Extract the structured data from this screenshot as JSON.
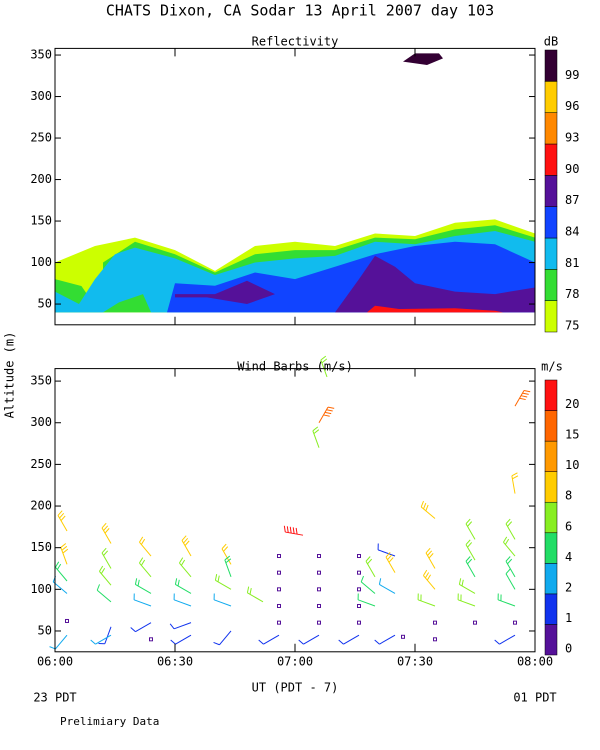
{
  "title": "CHATS Dixon, CA  Sodar  13 April 2007  day 103",
  "y_label": "Altitude (m)",
  "x_label": "UT  (PDT - 7)",
  "left_note": "23 PDT",
  "right_note": "01 PDT",
  "footnote": "Prelimiary Data",
  "chart_data": [
    {
      "type": "contour",
      "title": "Reflectivity",
      "xlim": [
        0,
        120
      ],
      "ylim": [
        25,
        358
      ],
      "xticks": [
        {
          "value": 0,
          "label": "06:00"
        },
        {
          "value": 30,
          "label": "06:30"
        },
        {
          "value": 60,
          "label": "07:00"
        },
        {
          "value": 90,
          "label": "07:30"
        },
        {
          "value": 120,
          "label": "08:00"
        }
      ],
      "yticks": [
        50,
        100,
        150,
        200,
        250,
        300,
        350
      ],
      "colorbar": {
        "unit": "dB",
        "levels": [
          75,
          78,
          81,
          84,
          87,
          90,
          93,
          96,
          99
        ],
        "colors": [
          "#ccff00",
          "#33dd33",
          "#11bbee",
          "#1144ff",
          "#551199",
          "#ff1111",
          "#ff8800",
          "#ffcc00",
          "#330033"
        ]
      },
      "regions": [
        {
          "level": 75,
          "points": [
            [
              0,
              40
            ],
            [
              0,
              100
            ],
            [
              10,
              120
            ],
            [
              20,
              130
            ],
            [
              30,
              115
            ],
            [
              40,
              90
            ],
            [
              50,
              120
            ],
            [
              60,
              125
            ],
            [
              70,
              120
            ],
            [
              80,
              135
            ],
            [
              90,
              132
            ],
            [
              100,
              148
            ],
            [
              110,
              152
            ],
            [
              120,
              135
            ],
            [
              120,
              40
            ]
          ]
        },
        {
          "level": 78,
          "points": [
            [
              0,
              40
            ],
            [
              0,
              80
            ],
            [
              8,
              70
            ],
            [
              12,
              100
            ],
            [
              20,
              125
            ],
            [
              30,
              110
            ],
            [
              40,
              88
            ],
            [
              50,
              110
            ],
            [
              60,
              115
            ],
            [
              70,
              115
            ],
            [
              80,
              130
            ],
            [
              90,
              128
            ],
            [
              100,
              140
            ],
            [
              110,
              145
            ],
            [
              120,
              130
            ],
            [
              120,
              40
            ]
          ]
        },
        {
          "level": 75,
          "points": [
            [
              4,
              90
            ],
            [
              12,
              100
            ],
            [
              12,
              72
            ],
            [
              8,
              62
            ]
          ]
        },
        {
          "level": 81,
          "points": [
            [
              0,
              40
            ],
            [
              0,
              65
            ],
            [
              6,
              50
            ],
            [
              10,
              80
            ],
            [
              15,
              110
            ],
            [
              20,
              118
            ],
            [
              30,
              105
            ],
            [
              40,
              85
            ],
            [
              50,
              100
            ],
            [
              60,
              105
            ],
            [
              70,
              108
            ],
            [
              80,
              125
            ],
            [
              90,
              122
            ],
            [
              100,
              132
            ],
            [
              110,
              138
            ],
            [
              120,
              125
            ],
            [
              120,
              40
            ],
            [
              24,
              40
            ],
            [
              22,
              62
            ],
            [
              16,
              52
            ],
            [
              12,
              40
            ]
          ]
        },
        {
          "level": 84,
          "points": [
            [
              28,
              40
            ],
            [
              30,
              75
            ],
            [
              40,
              72
            ],
            [
              50,
              88
            ],
            [
              60,
              80
            ],
            [
              70,
              95
            ],
            [
              80,
              110
            ],
            [
              90,
              120
            ],
            [
              100,
              125
            ],
            [
              110,
              122
            ],
            [
              120,
              100
            ],
            [
              120,
              40
            ]
          ]
        },
        {
          "level": 87,
          "points": [
            [
              70,
              40
            ],
            [
              76,
              80
            ],
            [
              80,
              108
            ],
            [
              85,
              95
            ],
            [
              90,
              75
            ],
            [
              100,
              65
            ],
            [
              110,
              62
            ],
            [
              120,
              70
            ],
            [
              120,
              40
            ]
          ]
        },
        {
          "level": 87,
          "points": [
            [
              30,
              62
            ],
            [
              40,
              62
            ],
            [
              48,
              78
            ],
            [
              55,
              62
            ],
            [
              48,
              50
            ],
            [
              38,
              58
            ],
            [
              30,
              58
            ]
          ]
        },
        {
          "level": 90,
          "points": [
            [
              78,
              40
            ],
            [
              80,
              48
            ],
            [
              86,
              44
            ],
            [
              100,
              45
            ],
            [
              110,
              42
            ],
            [
              112,
              40
            ]
          ]
        },
        {
          "level": 99,
          "points": [
            [
              87,
              342
            ],
            [
              90,
              352
            ],
            [
              96,
              352
            ],
            [
              97,
              346
            ],
            [
              93,
              338
            ]
          ]
        }
      ]
    },
    {
      "type": "barbs",
      "title": "Wind Barbs (m/s)",
      "xlim": [
        0,
        120
      ],
      "ylim": [
        25,
        365
      ],
      "xticks": [
        {
          "value": 0,
          "label": "06:00"
        },
        {
          "value": 30,
          "label": "06:30"
        },
        {
          "value": 60,
          "label": "07:00"
        },
        {
          "value": 90,
          "label": "07:30"
        },
        {
          "value": 120,
          "label": "08:00"
        }
      ],
      "yticks": [
        50,
        100,
        150,
        200,
        250,
        300,
        350
      ],
      "colorbar": {
        "unit": "m/s",
        "levels": [
          0,
          1,
          2,
          4,
          6,
          8,
          10,
          15,
          20
        ],
        "colors": [
          "#551199",
          "#1133ee",
          "#11aaee",
          "#22dd66",
          "#88ee22",
          "#ffcc00",
          "#ff9900",
          "#ff6600",
          "#ff1111"
        ]
      },
      "barbs": [
        [
          3,
          170,
          9,
          330
        ],
        [
          3,
          130,
          9,
          340
        ],
        [
          3,
          110,
          5,
          320
        ],
        [
          3,
          95,
          3,
          310
        ],
        [
          3,
          62,
          0,
          0
        ],
        [
          3,
          45,
          2,
          220
        ],
        [
          14,
          155,
          9,
          330
        ],
        [
          14,
          125,
          7,
          330
        ],
        [
          14,
          105,
          6,
          320
        ],
        [
          14,
          85,
          4,
          310
        ],
        [
          14,
          55,
          1.5,
          200
        ],
        [
          14,
          45,
          2,
          240
        ],
        [
          24,
          140,
          8,
          320
        ],
        [
          24,
          115,
          7,
          320
        ],
        [
          24,
          95,
          5,
          300
        ],
        [
          24,
          80,
          3,
          290
        ],
        [
          24,
          60,
          1.5,
          240
        ],
        [
          24,
          40,
          0,
          0
        ],
        [
          34,
          140,
          9,
          330
        ],
        [
          34,
          115,
          7,
          320
        ],
        [
          34,
          95,
          5,
          300
        ],
        [
          34,
          80,
          3,
          290
        ],
        [
          34,
          60,
          1.5,
          250
        ],
        [
          34,
          45,
          1.5,
          240
        ],
        [
          44,
          130,
          8,
          330
        ],
        [
          44,
          115,
          5,
          340
        ],
        [
          44,
          100,
          6,
          300
        ],
        [
          44,
          80,
          3,
          290
        ],
        [
          44,
          50,
          1.5,
          220
        ],
        [
          52,
          85,
          7,
          300
        ],
        [
          56,
          140,
          0,
          0
        ],
        [
          56,
          120,
          0,
          0
        ],
        [
          56,
          100,
          0,
          0
        ],
        [
          56,
          80,
          0,
          0
        ],
        [
          56,
          60,
          0,
          0
        ],
        [
          56,
          45,
          1.5,
          240
        ],
        [
          62,
          165,
          20,
          280
        ],
        [
          66,
          300,
          15,
          30
        ],
        [
          66,
          270,
          7,
          340
        ],
        [
          68,
          355,
          7,
          340
        ],
        [
          66,
          140,
          0,
          0
        ],
        [
          66,
          120,
          0,
          0
        ],
        [
          66,
          100,
          0,
          0
        ],
        [
          66,
          80,
          0,
          0
        ],
        [
          66,
          60,
          0,
          0
        ],
        [
          66,
          45,
          1.5,
          240
        ],
        [
          76,
          140,
          0,
          0
        ],
        [
          76,
          120,
          0,
          0
        ],
        [
          76,
          100,
          0,
          0
        ],
        [
          76,
          80,
          0,
          0
        ],
        [
          76,
          60,
          0,
          0
        ],
        [
          76,
          45,
          1.5,
          240
        ],
        [
          80,
          115,
          7,
          330
        ],
        [
          80,
          95,
          4,
          310
        ],
        [
          80,
          80,
          4,
          290
        ],
        [
          85,
          140,
          1.5,
          290
        ],
        [
          85,
          120,
          9,
          330
        ],
        [
          85,
          95,
          3,
          300
        ],
        [
          85,
          45,
          1.5,
          240
        ],
        [
          87,
          43,
          0,
          0
        ],
        [
          95,
          185,
          9,
          310
        ],
        [
          95,
          125,
          9,
          330
        ],
        [
          95,
          100,
          9,
          320
        ],
        [
          95,
          80,
          6,
          290
        ],
        [
          95,
          60,
          0,
          0
        ],
        [
          95,
          40,
          0,
          0
        ],
        [
          105,
          160,
          6,
          330
        ],
        [
          105,
          135,
          7,
          330
        ],
        [
          105,
          115,
          5,
          330
        ],
        [
          105,
          95,
          6,
          300
        ],
        [
          105,
          80,
          6,
          290
        ],
        [
          105,
          60,
          0,
          0
        ],
        [
          115,
          320,
          15,
          30
        ],
        [
          115,
          215,
          8,
          350
        ],
        [
          115,
          160,
          6,
          330
        ],
        [
          115,
          140,
          6,
          320
        ],
        [
          115,
          115,
          5,
          330
        ],
        [
          115,
          100,
          4,
          330
        ],
        [
          115,
          80,
          5,
          290
        ],
        [
          115,
          60,
          0,
          0
        ],
        [
          115,
          45,
          1.5,
          240
        ]
      ]
    }
  ]
}
